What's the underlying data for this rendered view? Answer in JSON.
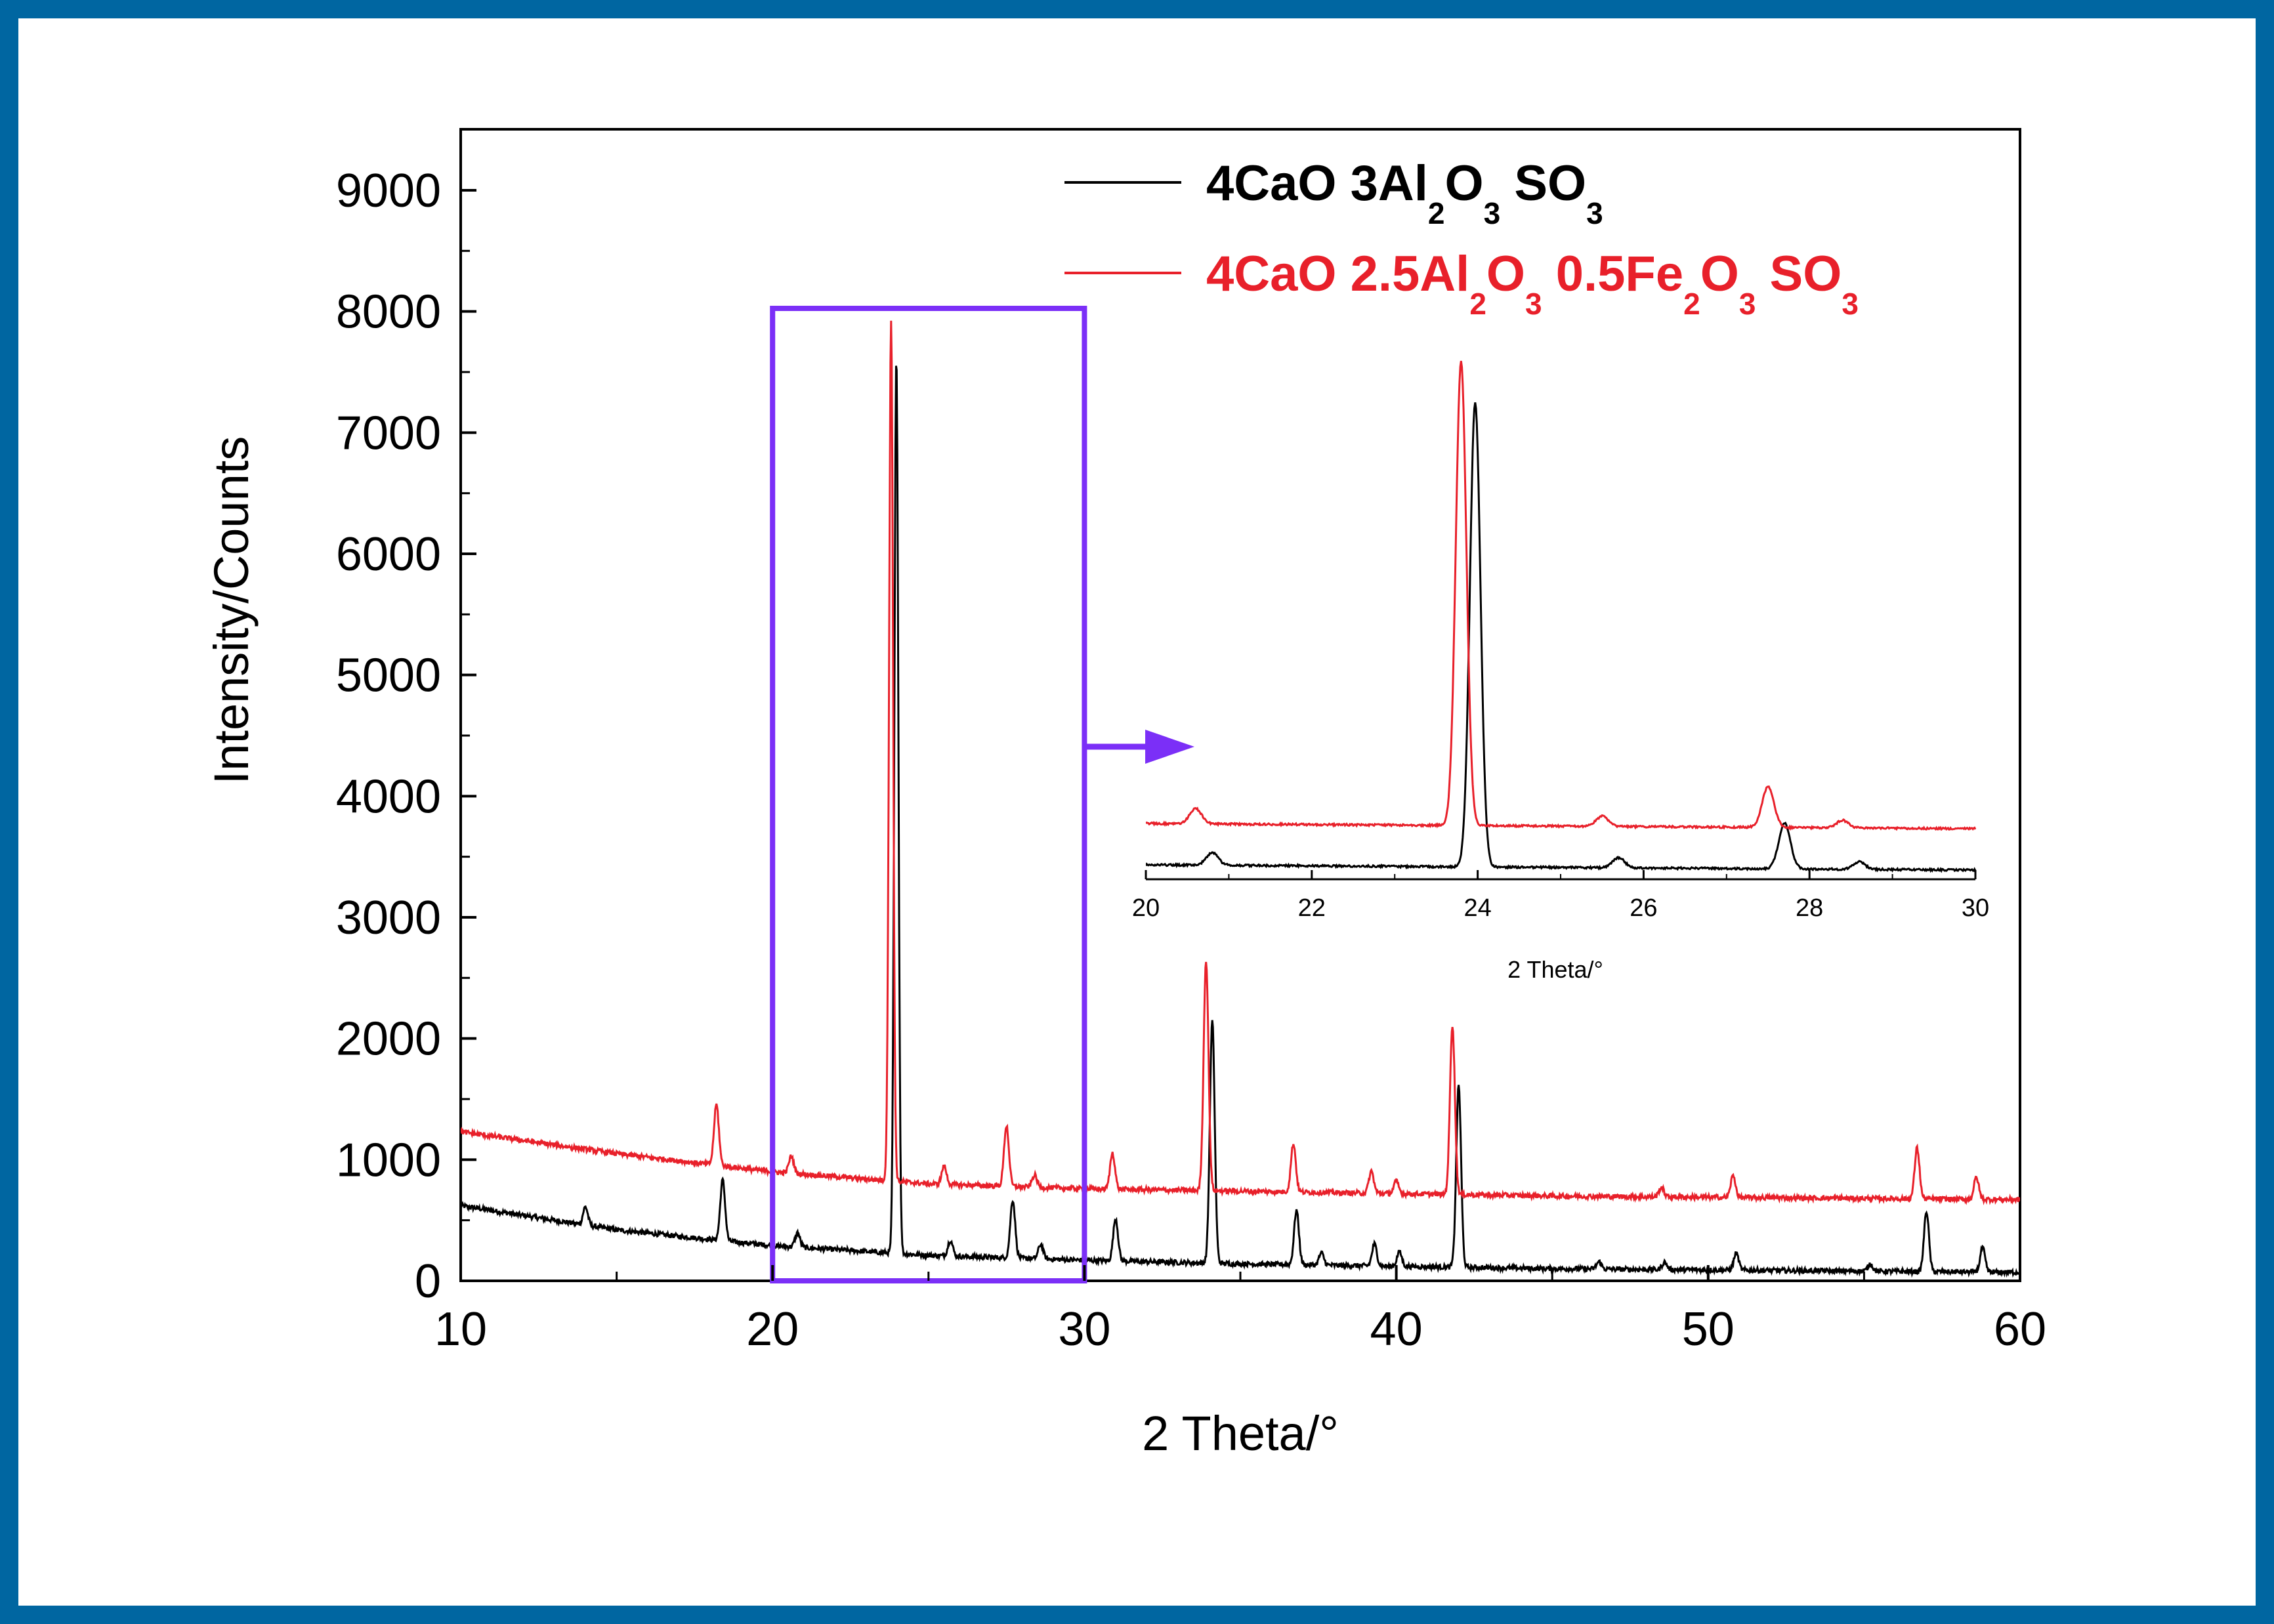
{
  "chart_data": {
    "type": "line",
    "xlabel": "2 Theta/°",
    "ylabel": "Intensity/Counts",
    "xlim": [
      10,
      60
    ],
    "ylim": [
      0,
      9500
    ],
    "xticks": [
      "10",
      "20",
      "30",
      "40",
      "50",
      "60"
    ],
    "yticks": [
      "0",
      "1000",
      "2000",
      "3000",
      "4000",
      "5000",
      "6000",
      "7000",
      "8000",
      "9000"
    ],
    "legend_position": "top-right",
    "series": [
      {
        "name": "4CaO 3Al2O3 SO3",
        "color": "#000000",
        "baseline": [
          [
            10,
            620
          ],
          [
            15,
            420
          ],
          [
            20,
            290
          ],
          [
            25,
            210
          ],
          [
            30,
            170
          ],
          [
            35,
            140
          ],
          [
            40,
            120
          ],
          [
            45,
            100
          ],
          [
            50,
            90
          ],
          [
            55,
            80
          ],
          [
            60,
            70
          ]
        ],
        "peaks": [
          [
            14.0,
            150
          ],
          [
            18.4,
            500
          ],
          [
            20.8,
            120
          ],
          [
            23.97,
            7400
          ],
          [
            25.7,
            130
          ],
          [
            27.7,
            480
          ],
          [
            28.6,
            120
          ],
          [
            31.0,
            350
          ],
          [
            34.1,
            2000
          ],
          [
            36.8,
            450
          ],
          [
            37.6,
            100
          ],
          [
            39.3,
            180
          ],
          [
            40.1,
            120
          ],
          [
            42.0,
            1500
          ],
          [
            46.5,
            60
          ],
          [
            48.6,
            60
          ],
          [
            50.9,
            140
          ],
          [
            55.2,
            60
          ],
          [
            57.0,
            500
          ],
          [
            58.8,
            200
          ]
        ]
      },
      {
        "name": "4CaO 2.5Al2O3 0.5Fe2O3 SO3",
        "color": "#E8202A",
        "baseline": [
          [
            10,
            1230
          ],
          [
            15,
            1050
          ],
          [
            20,
            900
          ],
          [
            25,
            800
          ],
          [
            30,
            760
          ],
          [
            35,
            740
          ],
          [
            40,
            720
          ],
          [
            45,
            700
          ],
          [
            50,
            690
          ],
          [
            55,
            680
          ],
          [
            60,
            670
          ]
        ],
        "peaks": [
          [
            18.2,
            500
          ],
          [
            20.6,
            140
          ],
          [
            23.8,
            7100
          ],
          [
            25.5,
            150
          ],
          [
            27.5,
            500
          ],
          [
            28.4,
            100
          ],
          [
            30.9,
            300
          ],
          [
            33.9,
            1900
          ],
          [
            36.7,
            400
          ],
          [
            39.2,
            180
          ],
          [
            40.0,
            100
          ],
          [
            41.8,
            1400
          ],
          [
            48.5,
            80
          ],
          [
            50.8,
            180
          ],
          [
            56.7,
            420
          ],
          [
            58.6,
            180
          ]
        ]
      }
    ],
    "inset": {
      "type": "line",
      "xlabel": "2 Theta/°",
      "xlim": [
        20,
        30
      ],
      "xticks": [
        "20",
        "22",
        "24",
        "26",
        "28",
        "30"
      ],
      "series": [
        {
          "name": "4CaO 3Al2O3 SO3",
          "color": "#000000",
          "peaks": [
            [
              20.8,
              0.025
            ],
            [
              23.97,
              0.92
            ],
            [
              25.7,
              0.02
            ],
            [
              27.7,
              0.09
            ],
            [
              28.6,
              0.015
            ]
          ]
        },
        {
          "name": "4CaO 2.5Al2O3 0.5Fe2O3 SO3",
          "color": "#E8202A",
          "peaks": [
            [
              20.6,
              0.03
            ],
            [
              23.8,
              0.92
            ],
            [
              25.5,
              0.02
            ],
            [
              27.5,
              0.08
            ],
            [
              28.4,
              0.015
            ]
          ]
        }
      ]
    },
    "zoom_box_x": [
      20,
      30
    ]
  },
  "legend": {
    "black": {
      "p1": "4CaO  3Al",
      "s1": "2",
      "p2": "O",
      "s2": "3",
      "p3": " SO",
      "s3": "3"
    },
    "red": {
      "p1": "4CaO  2.5Al",
      "s1": "2",
      "p2": "O",
      "s2": "3",
      "p3": " 0.5Fe",
      "s3": "2",
      "p4": "O",
      "s4": "3",
      "p5": " SO",
      "s5": "3"
    }
  },
  "colors": {
    "frame": "#0066A1",
    "zoom_box": "#7B2FF7",
    "black_series": "#000000",
    "red_series": "#E8202A"
  }
}
